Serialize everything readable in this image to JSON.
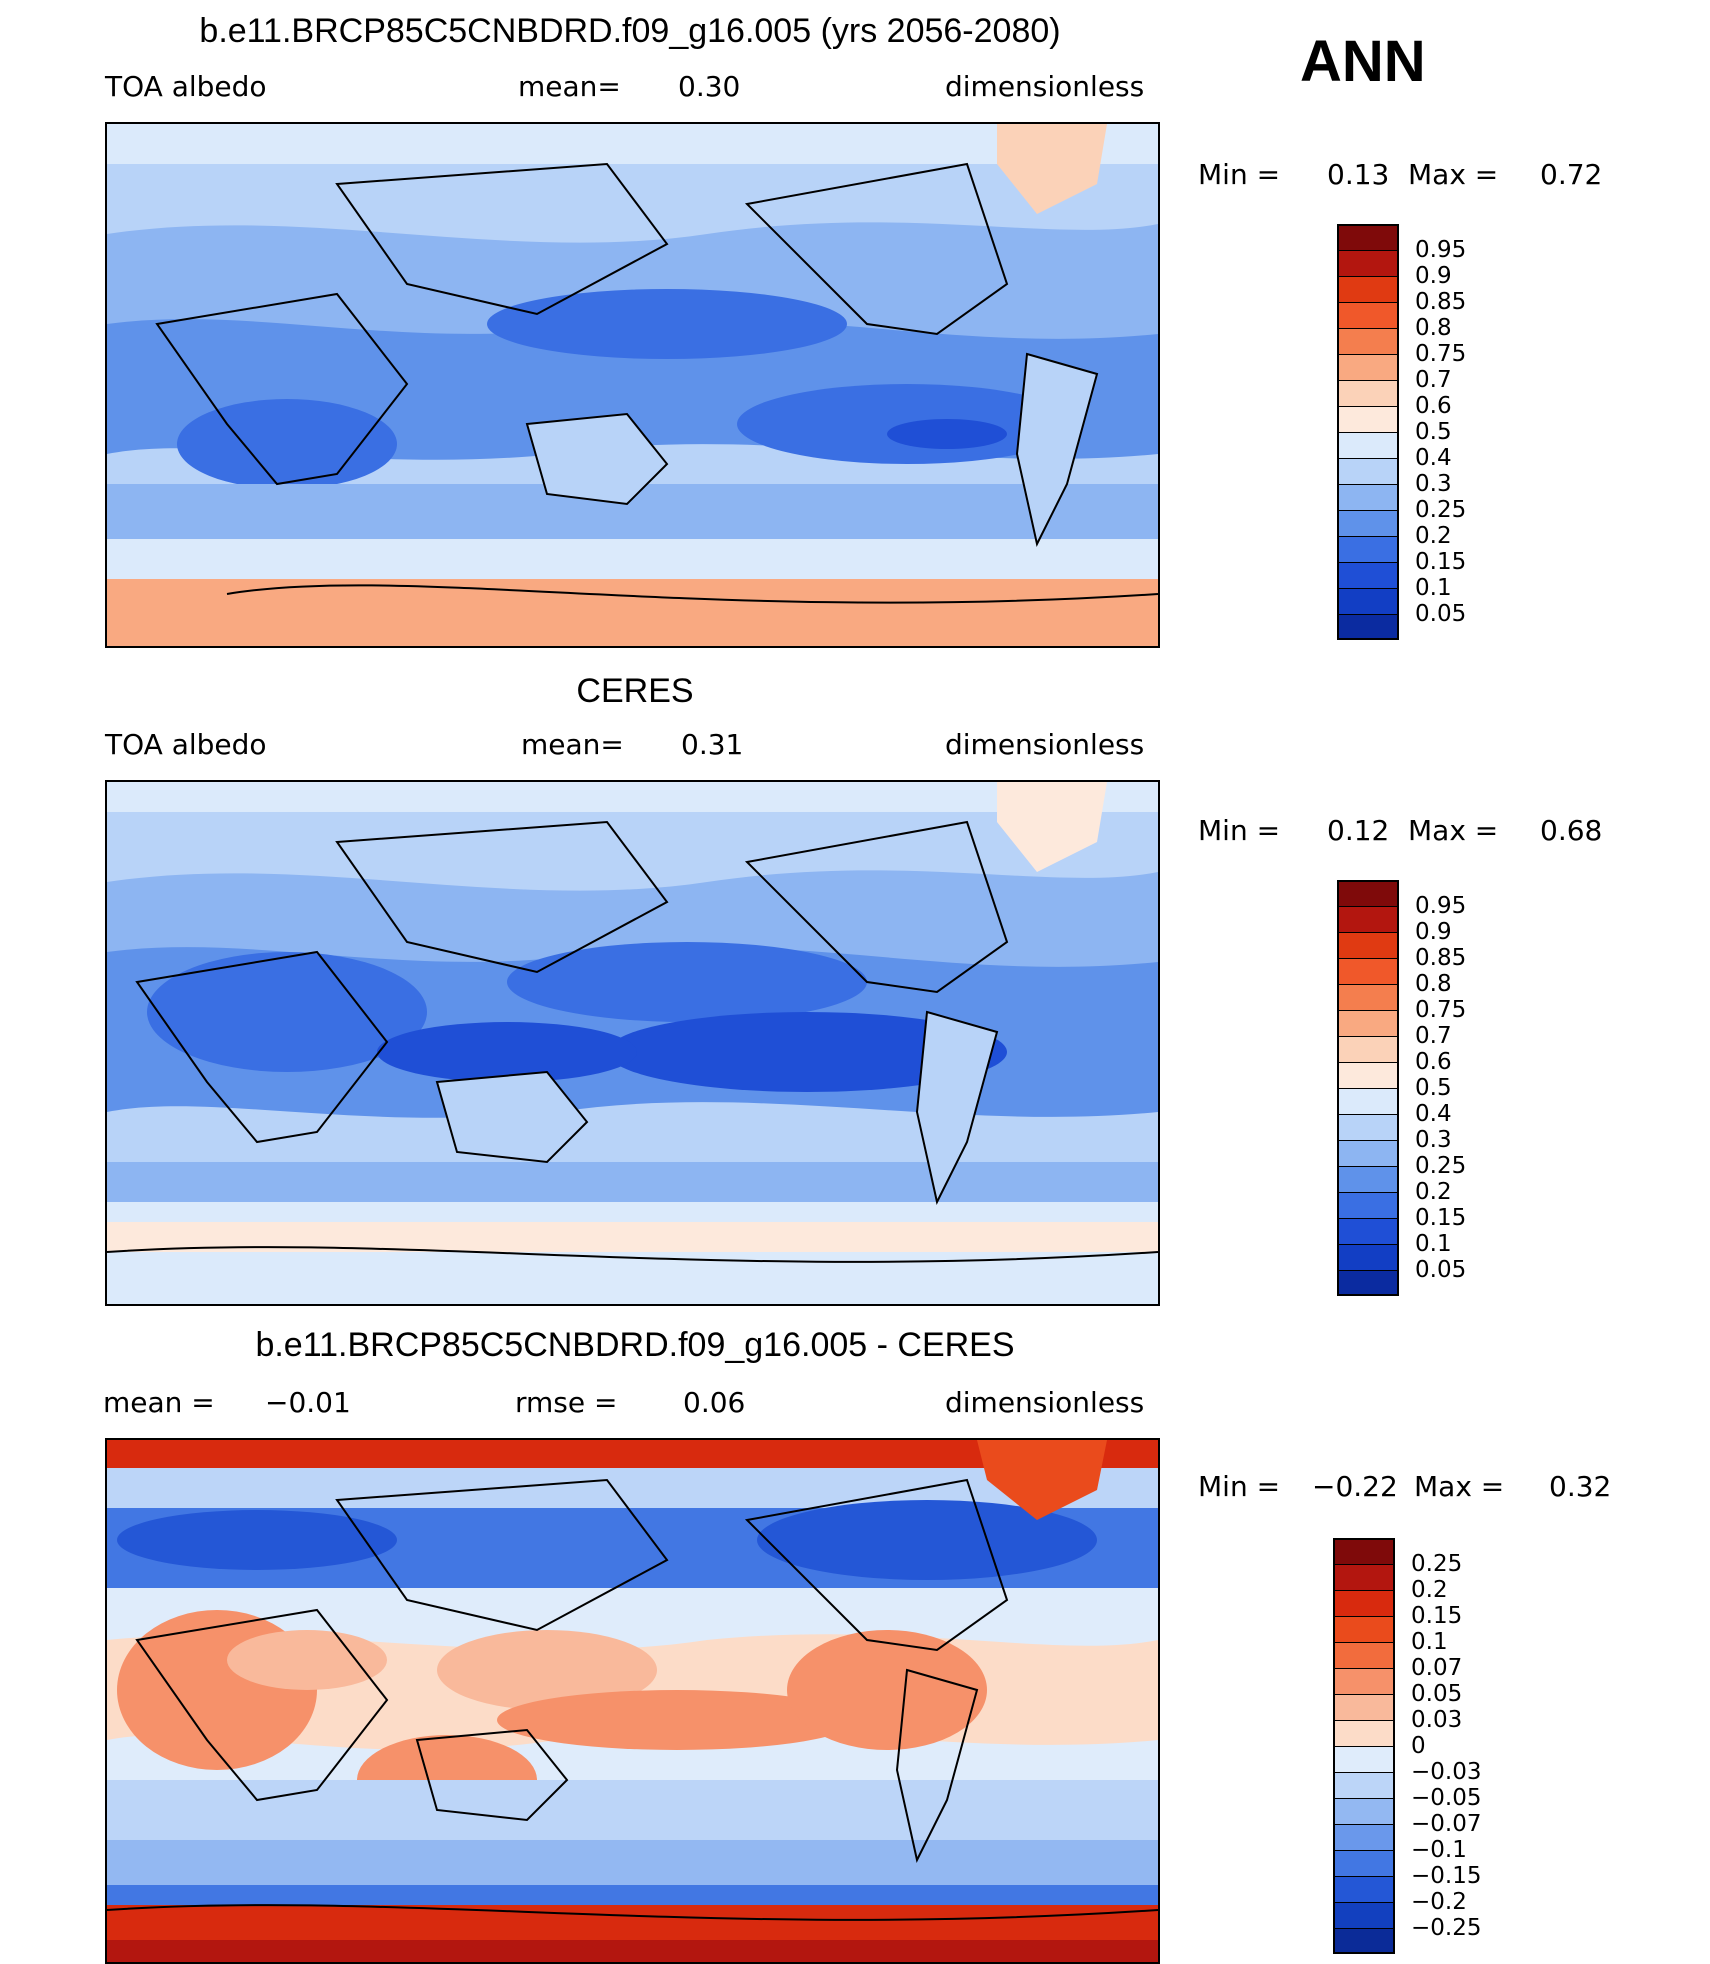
{
  "season": "ANN",
  "panels": [
    {
      "title": "b.e11.BRCP85C5CNBDRD.f09_g16.005 (yrs 2056-2080)",
      "left_label": "TOA albedo",
      "center_label": "mean=",
      "center_value": "0.30",
      "right_label": "dimensionless",
      "min_label": "Min =",
      "min_value": "0.13",
      "max_label": "Max =",
      "max_value": "0.72",
      "colorbar_labels": [
        "0.95",
        "0.9",
        "0.85",
        "0.8",
        "0.75",
        "0.7",
        "0.6",
        "0.5",
        "0.4",
        "0.3",
        "0.25",
        "0.2",
        "0.15",
        "0.1",
        "0.05"
      ],
      "colorbar_colors": [
        "#7f0a0a",
        "#b3160f",
        "#e03a12",
        "#f0582a",
        "#f47e4e",
        "#f9a981",
        "#fbd2b8",
        "#fde9dc",
        "#dbeafb",
        "#b8d3f8",
        "#8db5f2",
        "#5f92ea",
        "#3a6fe3",
        "#1f4fd6",
        "#123ec4",
        "#0b2ba0"
      ]
    },
    {
      "title": "CERES",
      "left_label": "TOA albedo",
      "center_label": "mean=",
      "center_value": "0.31",
      "right_label": "dimensionless",
      "min_label": "Min =",
      "min_value": "0.12",
      "max_label": "Max =",
      "max_value": "0.68",
      "colorbar_labels": [
        "0.95",
        "0.9",
        "0.85",
        "0.8",
        "0.75",
        "0.7",
        "0.6",
        "0.5",
        "0.4",
        "0.3",
        "0.25",
        "0.2",
        "0.15",
        "0.1",
        "0.05"
      ],
      "colorbar_colors": [
        "#7f0a0a",
        "#b3160f",
        "#e03a12",
        "#f0582a",
        "#f47e4e",
        "#f9a981",
        "#fbd2b8",
        "#fde9dc",
        "#dbeafb",
        "#b8d3f8",
        "#8db5f2",
        "#5f92ea",
        "#3a6fe3",
        "#1f4fd6",
        "#123ec4",
        "#0b2ba0"
      ]
    },
    {
      "title": "b.e11.BRCP85C5CNBDRD.f09_g16.005 - CERES",
      "left_label": "mean =",
      "center_label": "rmse =",
      "left_value": "−0.01",
      "center_value": "0.06",
      "right_label": "dimensionless",
      "min_label": "Min =",
      "min_value": "−0.22",
      "max_label": "Max =",
      "max_value": "0.32",
      "colorbar_labels": [
        "0.25",
        "0.2",
        "0.15",
        "0.1",
        "0.07",
        "0.05",
        "0.03",
        "0",
        "−0.03",
        "−0.05",
        "−0.07",
        "−0.1",
        "−0.15",
        "−0.2",
        "−0.25"
      ],
      "colorbar_colors": [
        "#7f0a0a",
        "#b3160f",
        "#d82a0e",
        "#ea4b1c",
        "#f26c3d",
        "#f6916a",
        "#f9b99b",
        "#fcdcc8",
        "#dfecfb",
        "#bcd5f8",
        "#93b8f2",
        "#6a98eb",
        "#4277e3",
        "#2457d6",
        "#1240bf",
        "#0b2b98"
      ]
    }
  ]
}
